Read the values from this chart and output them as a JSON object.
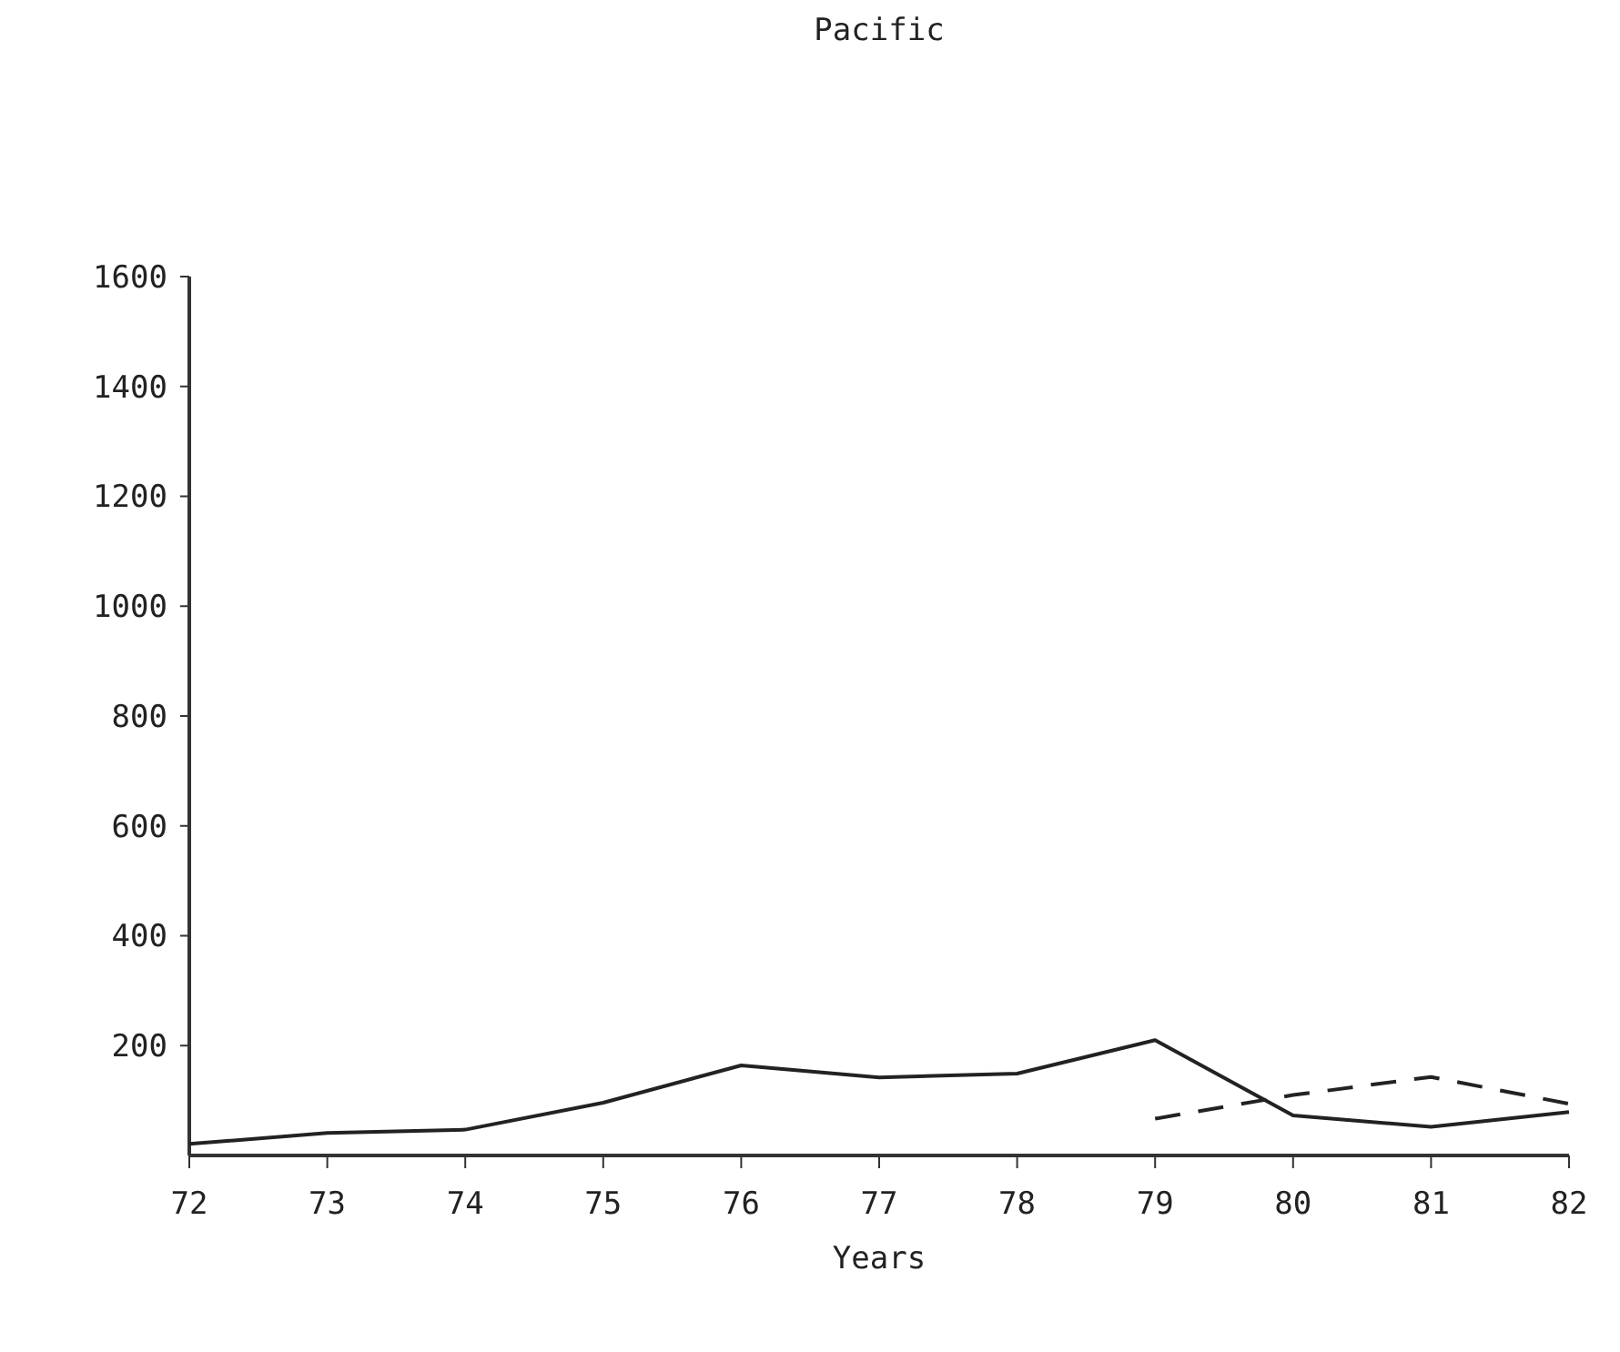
{
  "chart_data": {
    "type": "line",
    "title": "Pacific",
    "xlabel": "Years",
    "x": [
      72,
      73,
      74,
      75,
      76,
      77,
      78,
      79,
      80,
      81,
      82
    ],
    "series": [
      {
        "color": "#222222",
        "line_style": "solid",
        "values": [
          21,
          41,
          47,
          96,
          164,
          142,
          149,
          210,
          73,
          52,
          79
        ]
      },
      {
        "color": "#222222",
        "line_style": "dashed",
        "x": [
          79,
          80,
          81,
          82
        ],
        "values": [
          67,
          110,
          143,
          94
        ]
      }
    ],
    "xlim": [
      72,
      82
    ],
    "xticks": [
      72,
      73,
      74,
      75,
      76,
      77,
      78,
      79,
      80,
      81,
      82
    ],
    "ylim": [
      0,
      1600
    ],
    "yticks": [
      200,
      400,
      600,
      800,
      1000,
      1200,
      1400,
      1600
    ],
    "grid": false,
    "marker": "none"
  }
}
